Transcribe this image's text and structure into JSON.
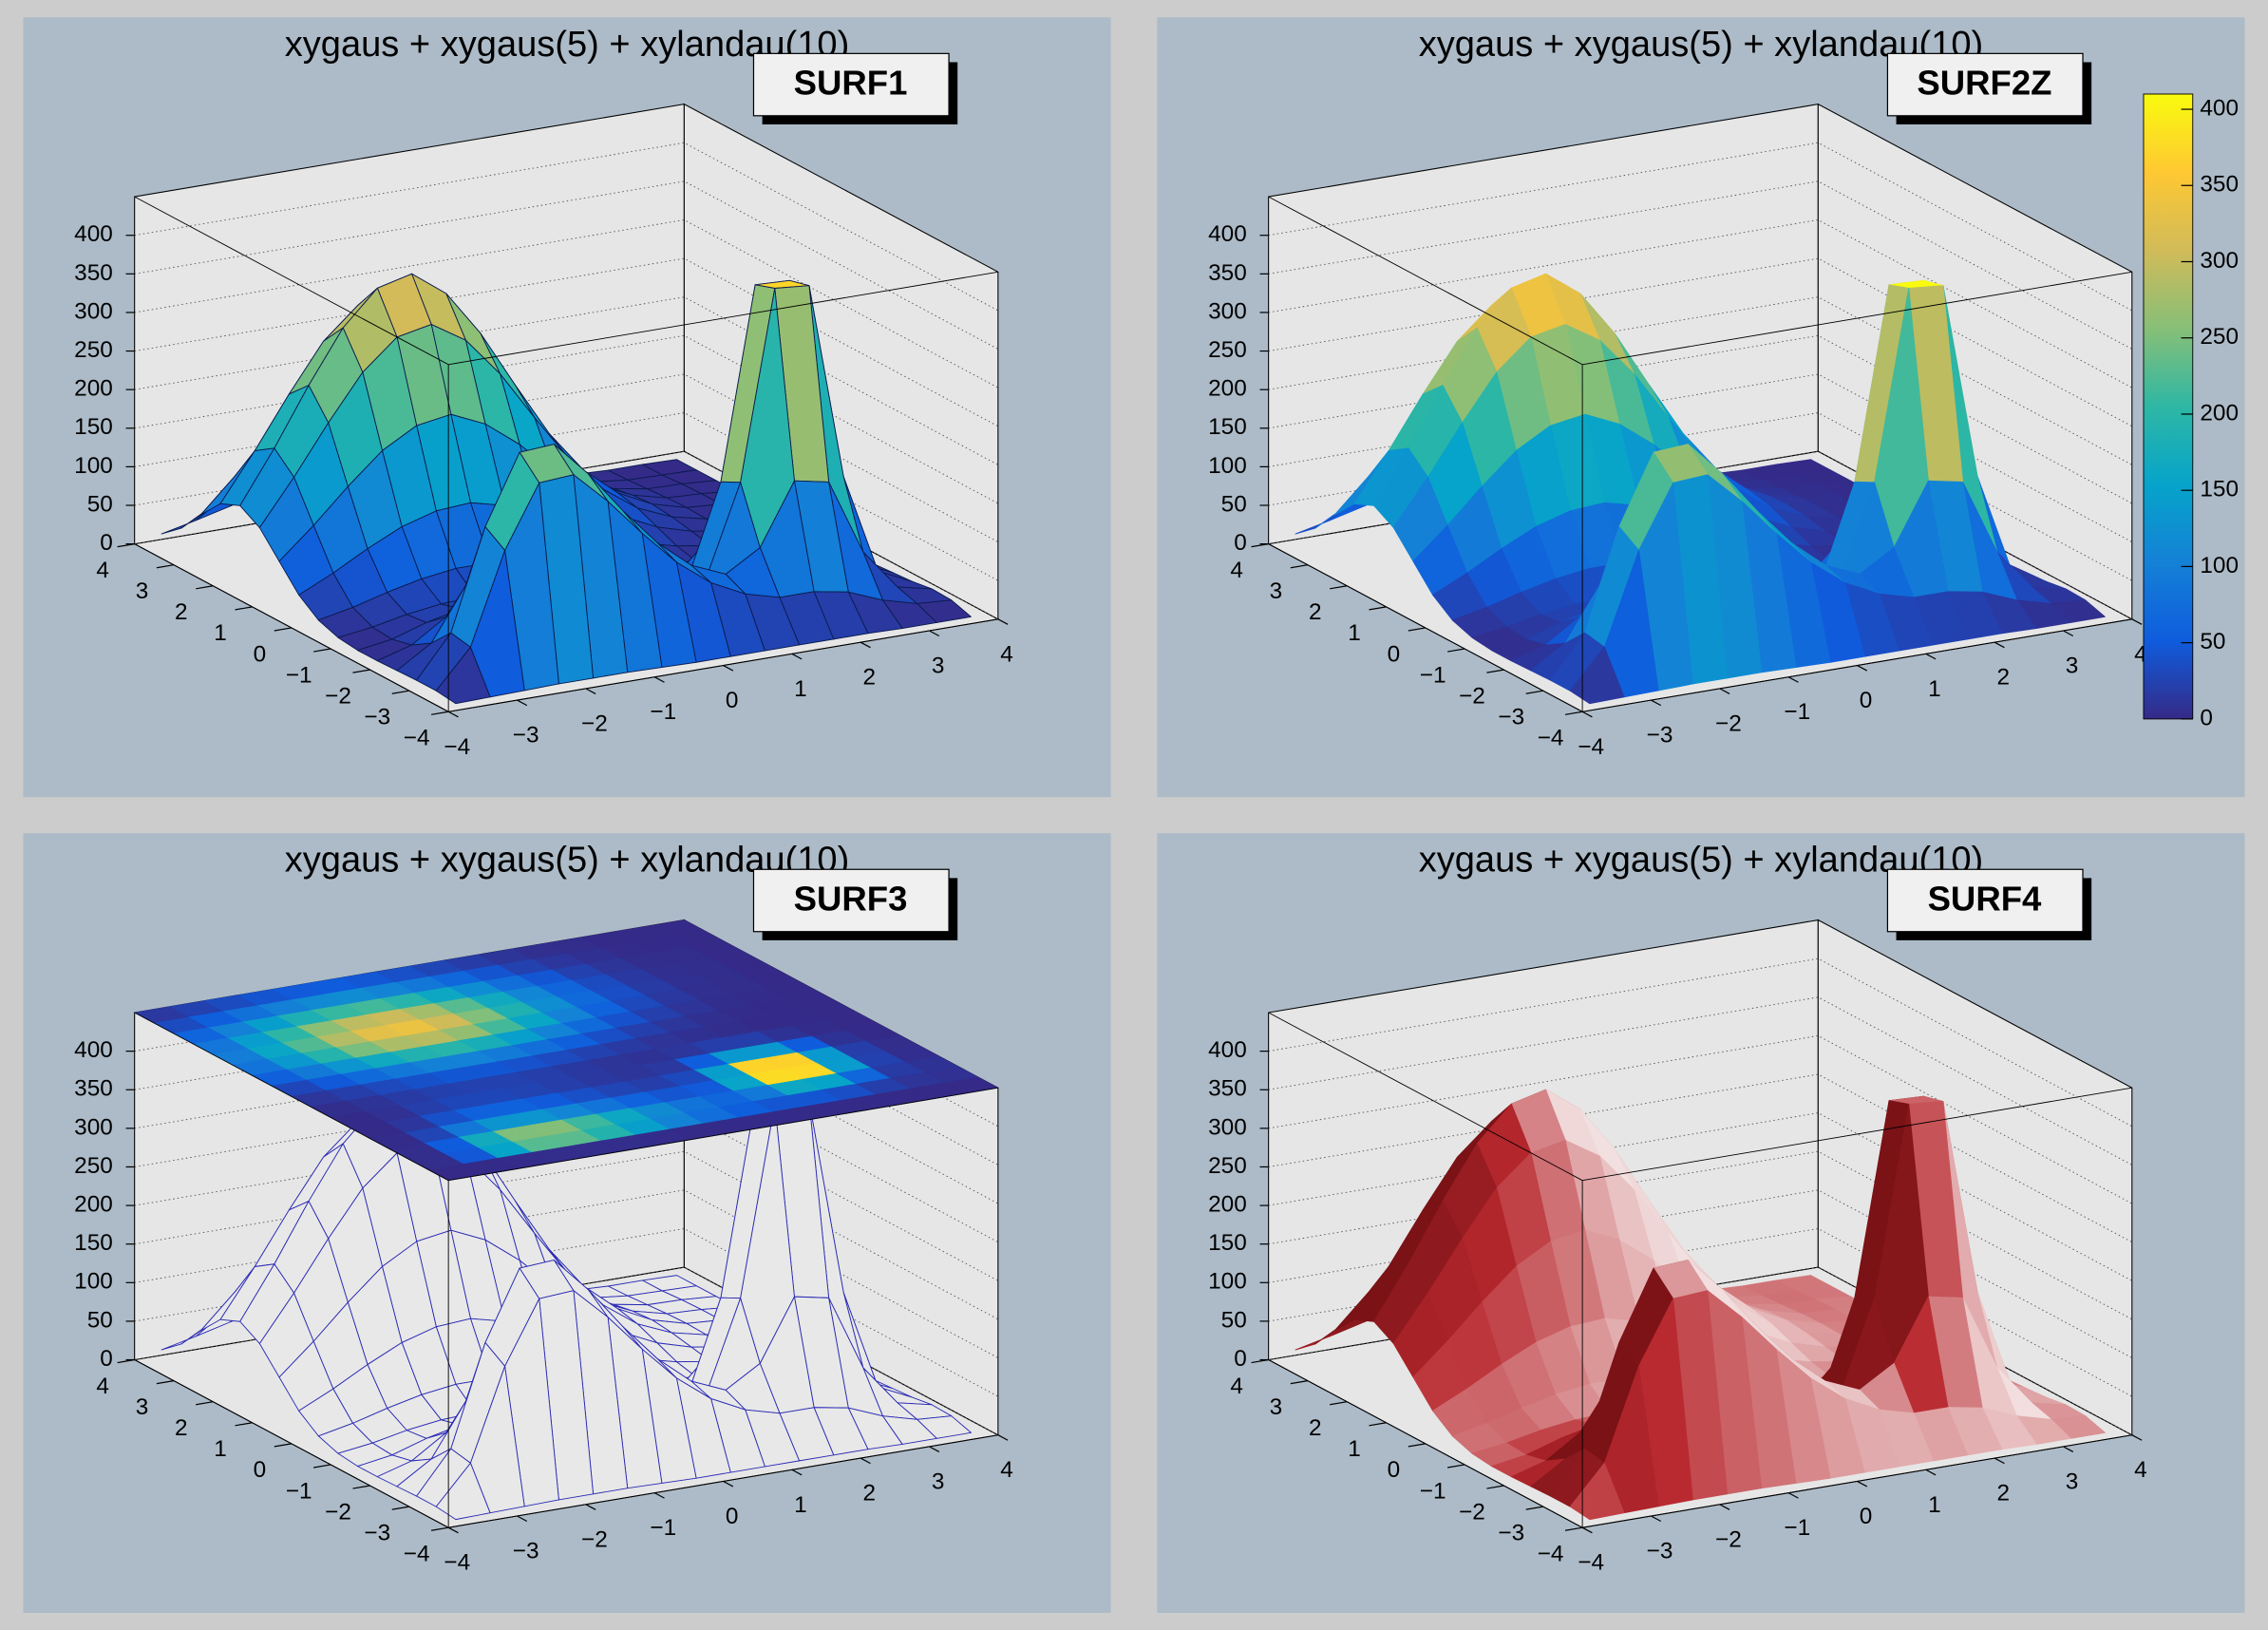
{
  "histogram": {
    "x": [
      -3.75,
      -3.25,
      -2.75,
      -2.25,
      -1.75,
      -1.25,
      -0.75,
      -0.25,
      0.25,
      0.75,
      1.25,
      1.75,
      2.25,
      2.75,
      3.25,
      3.75
    ],
    "y": [
      -3.75,
      -3.25,
      -2.75,
      -2.25,
      -1.75,
      -1.25,
      -0.75,
      -0.25,
      0.25,
      0.75,
      1.25,
      1.75,
      2.25,
      2.75,
      3.25,
      3.75
    ],
    "z": [
      [
        0,
        1,
        2,
        3,
        3,
        3,
        2,
        1,
        1,
        1,
        1,
        1,
        1,
        0,
        0,
        0
      ],
      [
        3,
        52,
        170,
        250,
        253,
        211,
        162,
        117,
        83,
        61,
        49,
        49,
        41,
        23,
        11,
        8
      ],
      [
        3,
        57,
        187,
        276,
        279,
        233,
        178,
        129,
        92,
        73,
        100,
        179,
        170,
        72,
        19,
        9
      ],
      [
        2,
        30,
        97,
        143,
        144,
        120,
        92,
        67,
        48,
        54,
        171,
        415,
        411,
        156,
        26,
        5
      ],
      [
        1,
        14,
        43,
        64,
        65,
        54,
        42,
        30,
        22,
        35,
        158,
        406,
        404,
        151,
        23,
        3
      ],
      [
        1,
        8,
        22,
        32,
        32,
        28,
        22,
        16,
        12,
        16,
        60,
        151,
        150,
        56,
        9,
        1
      ],
      [
        4,
        10,
        19,
        25,
        27,
        26,
        22,
        17,
        12,
        9,
        13,
        23,
        22,
        9,
        2,
        0
      ],
      [
        13,
        22,
        34,
        44,
        50,
        50,
        45,
        36,
        27,
        18,
        11,
        7,
        4,
        1,
        1,
        0
      ],
      [
        32,
        53,
        77,
        98,
        111,
        114,
        103,
        85,
        62,
        41,
        24,
        13,
        6,
        2,
        1,
        0
      ],
      [
        62,
        101,
        144,
        183,
        208,
        215,
        195,
        161,
        118,
        77,
        45,
        24,
        11,
        4,
        2,
        0
      ],
      [
        92,
        150,
        213,
        271,
        309,
        318,
        290,
        239,
        175,
        114,
        67,
        35,
        16,
        6,
        3,
        0
      ],
      [
        107,
        174,
        248,
        315,
        359,
        370,
        337,
        278,
        204,
        133,
        78,
        41,
        19,
        7,
        4,
        0
      ],
      [
        96,
        157,
        223,
        284,
        323,
        333,
        303,
        250,
        184,
        120,
        70,
        37,
        17,
        6,
        4,
        0
      ],
      [
        68,
        111,
        159,
        202,
        230,
        237,
        216,
        178,
        131,
        85,
        50,
        26,
        12,
        4,
        3,
        0
      ],
      [
        37,
        61,
        87,
        110,
        126,
        130,
        118,
        97,
        71,
        47,
        27,
        14,
        7,
        2,
        1,
        0
      ],
      [
        16,
        26,
        37,
        47,
        54,
        56,
        51,
        42,
        31,
        20,
        12,
        6,
        3,
        1,
        1,
        0
      ]
    ]
  },
  "chart_data": [
    {
      "type": "surface",
      "title": "xygaus + xygaus(5) + xylandau(10)",
      "label": "SURF1",
      "style": "fill-mesh",
      "palette": [
        "#352a87",
        "#0f5cdd",
        "#1481d6",
        "#06a4ca",
        "#2eb7a4",
        "#87bf77",
        "#d1bb59",
        "#fec832",
        "#f9fb0e"
      ],
      "mesh_color": "#0b1b4d",
      "grid": true,
      "xlim": [
        -4,
        4
      ],
      "ylim": [
        -4,
        4
      ],
      "zlim": [
        0,
        450
      ],
      "xticks": [
        {
          "value": -4,
          "label": "−4"
        },
        {
          "value": -3,
          "label": "−3"
        },
        {
          "value": -2,
          "label": "−2"
        },
        {
          "value": -1,
          "label": "−1"
        },
        0,
        1,
        2,
        3,
        4
      ],
      "yticks": [
        {
          "value": -4,
          "label": "−4"
        },
        {
          "value": -3,
          "label": "−3"
        },
        {
          "value": -2,
          "label": "−2"
        },
        {
          "value": -1,
          "label": "−1"
        },
        0,
        1,
        2,
        3,
        4
      ],
      "zticks": [
        0,
        50,
        100,
        150,
        200,
        250,
        300,
        350,
        400
      ]
    },
    {
      "type": "surface",
      "title": "xygaus + xygaus(5) + xylandau(10)",
      "label": "SURF2Z",
      "style": "fill",
      "palette": [
        "#352a87",
        "#0f5cdd",
        "#1481d6",
        "#06a4ca",
        "#2eb7a4",
        "#87bf77",
        "#d1bb59",
        "#fec832",
        "#f9fb0e"
      ],
      "grid": true,
      "xlim": [
        -4,
        4
      ],
      "ylim": [
        -4,
        4
      ],
      "zlim": [
        0,
        450
      ],
      "xticks": [
        {
          "value": -4,
          "label": "−4"
        },
        {
          "value": -3,
          "label": "−3"
        },
        {
          "value": -2,
          "label": "−2"
        },
        {
          "value": -1,
          "label": "−1"
        },
        0,
        1,
        2,
        3,
        4
      ],
      "yticks": [
        {
          "value": -4,
          "label": "−4"
        },
        {
          "value": -3,
          "label": "−3"
        },
        {
          "value": -2,
          "label": "−2"
        },
        {
          "value": -1,
          "label": "−1"
        },
        0,
        1,
        2,
        3,
        4
      ],
      "zticks": [
        0,
        50,
        100,
        150,
        200,
        250,
        300,
        350,
        400
      ],
      "colorbar": {
        "lim": [
          0,
          410
        ],
        "ticks": [
          0,
          50,
          100,
          150,
          200,
          250,
          300,
          350,
          400
        ]
      }
    },
    {
      "type": "surface",
      "title": "xygaus + xygaus(5) + xylandau(10)",
      "label": "SURF3",
      "style": "mesh",
      "top_map": true,
      "palette": [
        "#352a87",
        "#0f5cdd",
        "#1481d6",
        "#06a4ca",
        "#2eb7a4",
        "#87bf77",
        "#d1bb59",
        "#fec832",
        "#f9fb0e"
      ],
      "mesh_color": "#2a2ab4",
      "grid": true,
      "xlim": [
        -4,
        4
      ],
      "ylim": [
        -4,
        4
      ],
      "zlim": [
        0,
        450
      ],
      "xticks": [
        {
          "value": -4,
          "label": "−4"
        },
        {
          "value": -3,
          "label": "−3"
        },
        {
          "value": -2,
          "label": "−2"
        },
        {
          "value": -1,
          "label": "−1"
        },
        0,
        1,
        2,
        3,
        4
      ],
      "yticks": [
        {
          "value": -4,
          "label": "−4"
        },
        {
          "value": -3,
          "label": "−3"
        },
        {
          "value": -2,
          "label": "−2"
        },
        {
          "value": -1,
          "label": "−1"
        },
        0,
        1,
        2,
        3,
        4
      ],
      "zticks": [
        0,
        50,
        100,
        150,
        200,
        250,
        300,
        350,
        400
      ]
    },
    {
      "type": "surface",
      "title": "xygaus + xygaus(5) + xylandau(10)",
      "label": "SURF4",
      "style": "shaded",
      "color": "#b8282e",
      "grid": true,
      "xlim": [
        -4,
        4
      ],
      "ylim": [
        -4,
        4
      ],
      "zlim": [
        0,
        450
      ],
      "xticks": [
        {
          "value": -4,
          "label": "−4"
        },
        {
          "value": -3,
          "label": "−3"
        },
        {
          "value": -2,
          "label": "−2"
        },
        {
          "value": -1,
          "label": "−1"
        },
        0,
        1,
        2,
        3,
        4
      ],
      "yticks": [
        {
          "value": -4,
          "label": "−4"
        },
        {
          "value": -3,
          "label": "−3"
        },
        {
          "value": -2,
          "label": "−2"
        },
        {
          "value": -1,
          "label": "−1"
        },
        0,
        1,
        2,
        3,
        4
      ],
      "zticks": [
        0,
        50,
        100,
        150,
        200,
        250,
        300,
        350,
        400
      ]
    }
  ]
}
